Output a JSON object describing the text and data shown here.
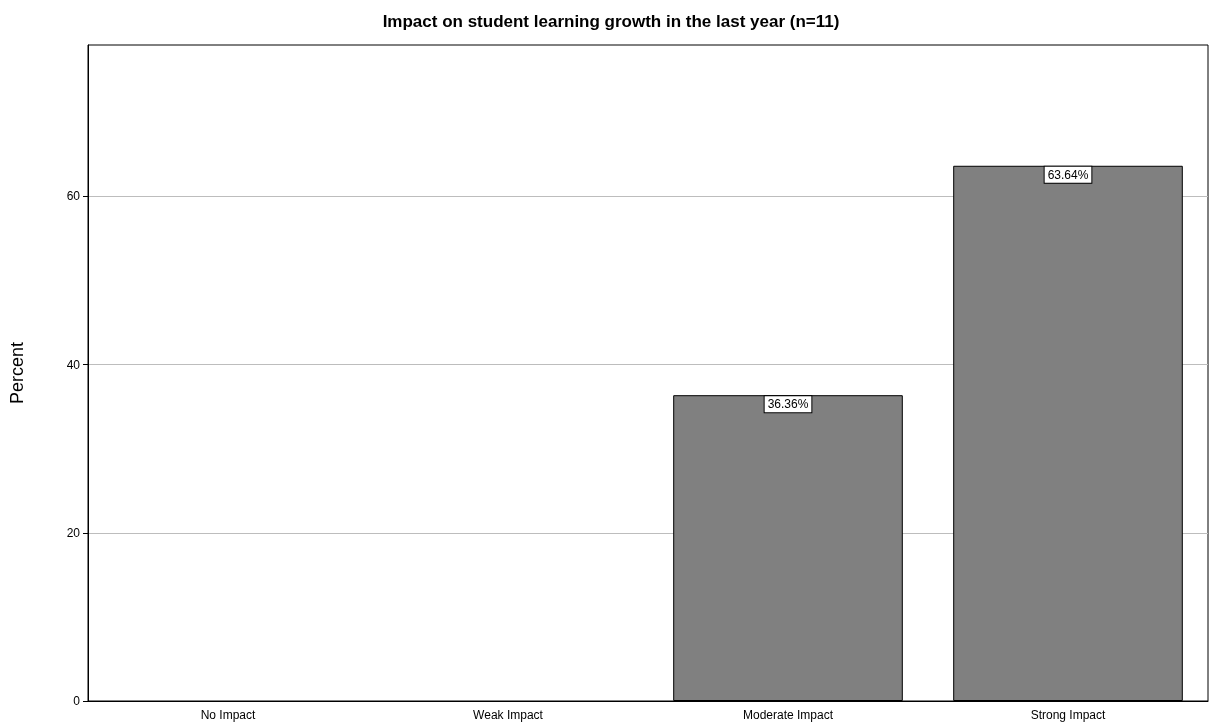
{
  "chart_data": {
    "type": "bar",
    "title": "Impact on student learning growth in the last year (n=11)",
    "ylabel": "Percent",
    "categories": [
      "No Impact",
      "Weak Impact",
      "Moderate Impact",
      "Strong Impact"
    ],
    "values": [
      0,
      0,
      36.36,
      63.64
    ],
    "value_labels": [
      null,
      null,
      "36.36%",
      "63.64%"
    ],
    "color": "#808080",
    "ylim": [
      0,
      78
    ],
    "yticks": [
      0,
      20,
      40,
      60
    ],
    "grid": "y"
  }
}
